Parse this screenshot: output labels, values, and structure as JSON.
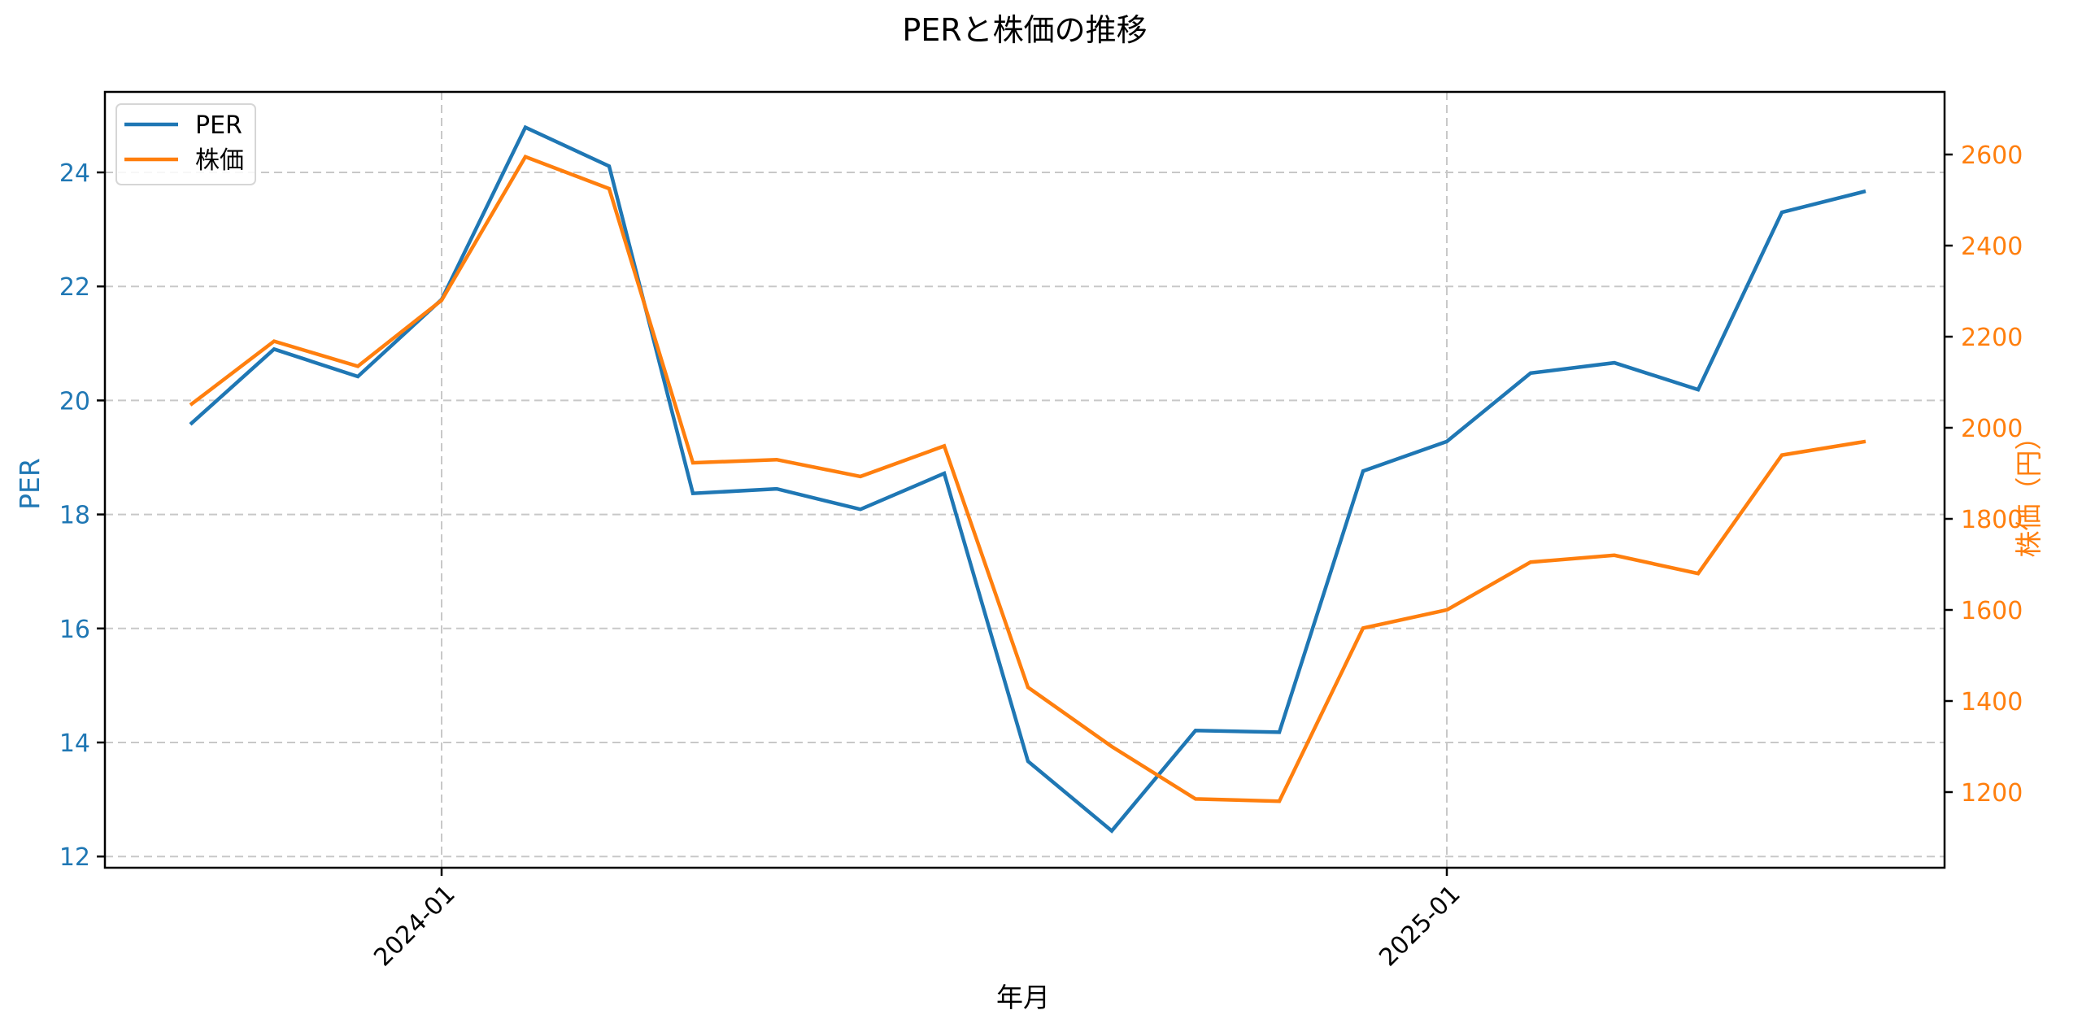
{
  "chart_data": {
    "type": "line",
    "title": "PERと株価の推移",
    "xlabel": "年月",
    "ylabel_left": "PER",
    "ylabel_right": "株価（円）",
    "x": [
      "2023-10",
      "2023-11",
      "2023-12",
      "2024-01",
      "2024-02",
      "2024-03",
      "2024-04",
      "2024-05",
      "2024-06",
      "2024-07",
      "2024-08",
      "2024-09",
      "2024-10",
      "2024-11",
      "2024-12",
      "2025-01",
      "2025-02",
      "2025-03",
      "2025-04",
      "2025-05",
      "2025-06"
    ],
    "x_tick_labels": [
      "2024-01",
      "2025-01"
    ],
    "series": [
      {
        "name": "PER",
        "axis": "left",
        "color": "#1f77b4",
        "values": [
          19.58,
          20.9,
          20.42,
          21.77,
          24.79,
          24.11,
          18.37,
          18.45,
          18.09,
          18.72,
          13.67,
          12.45,
          14.21,
          14.18,
          18.76,
          19.28,
          20.48,
          20.66,
          20.19,
          23.3,
          23.67
        ]
      },
      {
        "name": "株価",
        "axis": "right",
        "color": "#ff7f0e",
        "values": [
          2050,
          2190,
          2135,
          2280,
          2595,
          2525,
          1923,
          1930,
          1893,
          1960,
          1430,
          1300,
          1185,
          1180,
          1560,
          1600,
          1705,
          1720,
          1680,
          1940,
          1970
        ]
      }
    ],
    "y_left": {
      "ticks": [
        12,
        14,
        16,
        18,
        20,
        22,
        24
      ],
      "ylim": [
        11.8,
        25.25
      ],
      "color": "#1f77b4"
    },
    "y_right": {
      "ticks": [
        1200,
        1400,
        1600,
        1800,
        2000,
        2200,
        2400,
        2600
      ],
      "ylim": [
        1040,
        2742
      ],
      "color": "#ff7f0e"
    },
    "grid": true,
    "legend": {
      "position": "upper left",
      "entries": [
        "PER",
        "株価"
      ]
    }
  }
}
